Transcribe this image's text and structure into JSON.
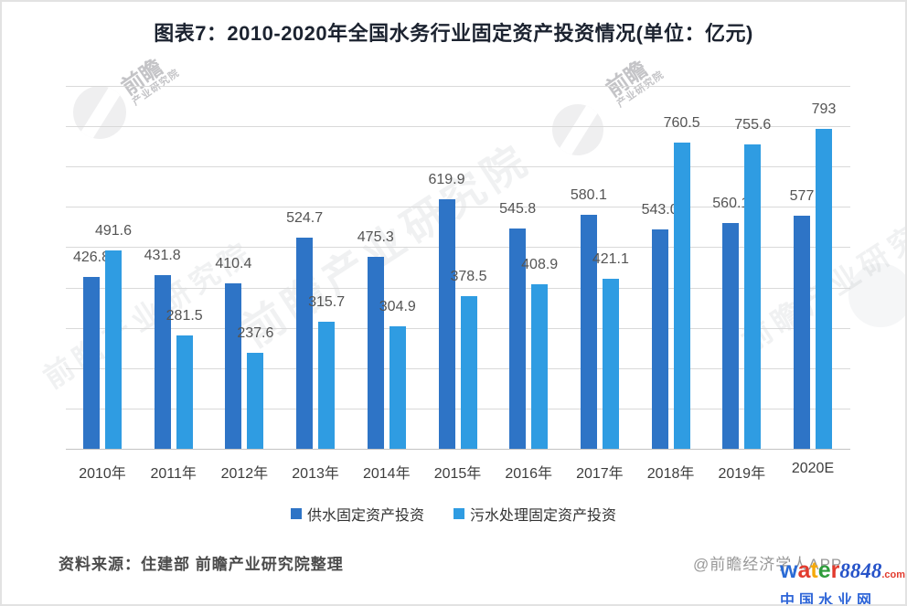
{
  "title": "图表7：2010-2020年全国水务行业固定资产投资情况(单位：亿元)",
  "chart_data": {
    "type": "bar",
    "title": "2010-2020年全国水务行业固定资产投资情况",
    "unit": "亿元",
    "categories": [
      "2010年",
      "2011年",
      "2012年",
      "2013年",
      "2014年",
      "2015年",
      "2016年",
      "2017年",
      "2018年",
      "2019年",
      "2020E"
    ],
    "series": [
      {
        "name": "供水固定资产投资",
        "color": "#2e74c6",
        "values": [
          426.8,
          431.8,
          410.4,
          524.7,
          475.3,
          619.9,
          545.8,
          580.1,
          543.0,
          560.1,
          577
        ],
        "labels": [
          "426.8",
          "431.8",
          "410.4",
          "524.7",
          "475.3",
          "619.9",
          "545.8",
          "580.1",
          "543.0",
          "560.1",
          "577"
        ]
      },
      {
        "name": "污水处理固定资产投资",
        "color": "#2f9ce2",
        "values": [
          491.6,
          281.5,
          237.6,
          315.7,
          304.9,
          378.5,
          408.9,
          421.1,
          760.5,
          755.6,
          793
        ],
        "labels": [
          "491.6",
          "281.5",
          "237.6",
          "315.7",
          "304.9",
          "378.5",
          "408.9",
          "421.1",
          "760.5",
          "755.6",
          "793"
        ]
      }
    ],
    "ylim": [
      0,
      900
    ],
    "grid": true,
    "grid_step": 100,
    "legend_position": "bottom",
    "value_labels": true
  },
  "footer": {
    "source": "资料来源：住建部 前瞻产业研究院整理",
    "credit": "@前瞻经济学人APP"
  },
  "watermarks": {
    "logo_main": "前瞻",
    "logo_sub": "产业研究院",
    "diagonal": "前瞻产业研究院",
    "brand": {
      "letters": [
        {
          "ch": "w",
          "color": "#2a6bd6"
        },
        {
          "ch": "a",
          "color": "#e23b2e"
        },
        {
          "ch": "t",
          "color": "#f6a90a"
        },
        {
          "ch": "e",
          "color": "#2f9d3c"
        },
        {
          "ch": "r",
          "color": "#e23b2e"
        }
      ],
      "number": "8848",
      "number_color": "#2653c9",
      "tld": ".com",
      "tld_color": "#e23b2e",
      "line2": "中国水业网",
      "line2_color": "#2f66d8"
    }
  }
}
